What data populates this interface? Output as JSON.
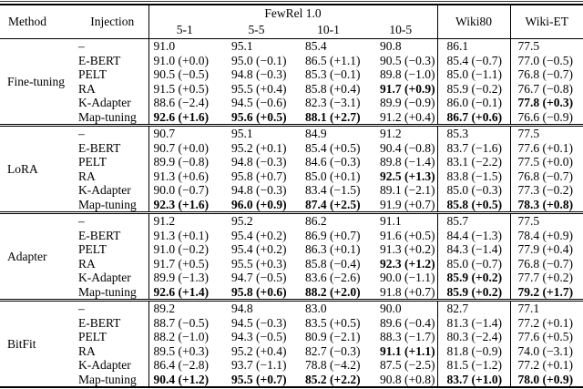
{
  "table": {
    "headers": {
      "method": "Method",
      "injection": "Injection",
      "fewrel_span": "FewRel 1.0",
      "fewrel_subcols": [
        "5-1",
        "5-5",
        "10-1",
        "10-5"
      ],
      "wiki80": "Wiki80",
      "wiki_et": "Wiki-ET"
    },
    "groups": [
      {
        "method": "Fine-tuning",
        "rows": [
          {
            "injection": "–",
            "cells": [
              "91.0",
              "95.1",
              "85.4",
              "90.8",
              "86.1",
              "77.5"
            ],
            "bold": []
          },
          {
            "injection": "E-BERT",
            "cells": [
              "91.0 (+0.0)",
              "95.0 (−0.1)",
              "86.5 (+1.1)",
              "90.5 (−0.3)",
              "85.4 (−0.7)",
              "77.0 (−0.5)"
            ],
            "bold": []
          },
          {
            "injection": "PELT",
            "cells": [
              "90.5 (−0.5)",
              "94.8 (−0.3)",
              "85.3 (−0.1)",
              "89.8 (−1.0)",
              "85.0 (−1.1)",
              "76.8 (−0.7)"
            ],
            "bold": []
          },
          {
            "injection": "RA",
            "cells": [
              "91.5 (+0.5)",
              "95.5 (+0.4)",
              "85.8 (+0.4)",
              "91.7 (+0.9)",
              "85.9 (−0.2)",
              "76.7 (−0.8)"
            ],
            "bold": [
              3
            ]
          },
          {
            "injection": "K-Adapter",
            "cells": [
              "88.6 (−2.4)",
              "94.5 (−0.6)",
              "82.3 (−3.1)",
              "89.9 (−0.9)",
              "86.0 (−0.1)",
              "77.8 (+0.3)"
            ],
            "bold": [
              5
            ]
          },
          {
            "injection": "Map-tuning",
            "cells": [
              "92.6 (+1.6)",
              "95.6 (+0.5)",
              "88.1 (+2.7)",
              "91.2 (+0.4)",
              "86.7 (+0.6)",
              "76.6 (−0.9)"
            ],
            "bold": [
              0,
              1,
              2,
              4
            ]
          }
        ]
      },
      {
        "method": "LoRA",
        "rows": [
          {
            "injection": "–",
            "cells": [
              "90.7",
              "95.1",
              "84.9",
              "91.2",
              "85.3",
              "77.5"
            ],
            "bold": []
          },
          {
            "injection": "E-BERT",
            "cells": [
              "90.7 (+0.0)",
              "95.2 (+0.1)",
              "85.4 (+0.5)",
              "90.4 (−0.8)",
              "83.7 (−1.6)",
              "77.6 (+0.1)"
            ],
            "bold": []
          },
          {
            "injection": "PELT",
            "cells": [
              "89.9 (−0.8)",
              "94.8 (−0.3)",
              "84.6 (−0.3)",
              "89.8 (−1.4)",
              "83.1 (−2.2)",
              "77.5 (+0.0)"
            ],
            "bold": []
          },
          {
            "injection": "RA",
            "cells": [
              "91.3 (+0.6)",
              "95.8 (+0.7)",
              "85.0 (+0.1)",
              "92.5 (+1.3)",
              "83.8 (−1.5)",
              "76.8 (−0.7)"
            ],
            "bold": [
              3
            ]
          },
          {
            "injection": "K-Adapter",
            "cells": [
              "90.0 (−0.7)",
              "94.8 (−0.3)",
              "83.4 (−1.5)",
              "89.1 (−2.1)",
              "85.0 (−0.3)",
              "77.3 (−0.2)"
            ],
            "bold": []
          },
          {
            "injection": "Map-tuning",
            "cells": [
              "92.3 (+1.6)",
              "96.0 (+0.9)",
              "87.4 (+2.5)",
              "91.9 (+0.7)",
              "85.8 (+0.5)",
              "78.3 (+0.8)"
            ],
            "bold": [
              0,
              1,
              2,
              4,
              5
            ]
          }
        ]
      },
      {
        "method": "Adapter",
        "rows": [
          {
            "injection": "–",
            "cells": [
              "91.2",
              "95.2",
              "86.2",
              "91.1",
              "85.7",
              "77.5"
            ],
            "bold": []
          },
          {
            "injection": "E-BERT",
            "cells": [
              "91.3 (+0.1)",
              "95.4 (+0.2)",
              "86.9 (+0.7)",
              "91.6 (+0.5)",
              "84.4 (−1.3)",
              "78.4 (+0.9)"
            ],
            "bold": []
          },
          {
            "injection": "PELT",
            "cells": [
              "91.0 (−0.2)",
              "95.4 (+0.2)",
              "86.3 (+0.1)",
              "91.3 (+0.2)",
              "84.3 (−1.4)",
              "77.9 (+0.4)"
            ],
            "bold": []
          },
          {
            "injection": "RA",
            "cells": [
              "91.7 (+0.5)",
              "95.5 (+0.3)",
              "85.8 (−0.4)",
              "92.3 (+1.2)",
              "85.0 (−0.7)",
              "76.8 (−0.7)"
            ],
            "bold": [
              3
            ]
          },
          {
            "injection": "K-Adapter",
            "cells": [
              "89.9 (−1.3)",
              "94.7 (−0.5)",
              "83.6 (−2.6)",
              "90.0 (−1.1)",
              "85.9 (+0.2)",
              "77.7 (+0.2)"
            ],
            "bold": [
              4
            ]
          },
          {
            "injection": "Map-tuning",
            "cells": [
              "92.6 (+1.4)",
              "95.8 (+0.6)",
              "88.2 (+2.0)",
              "91.8 (+0.7)",
              "85.9 (+0.2)",
              "79.2 (+1.7)"
            ],
            "bold": [
              0,
              1,
              2,
              4,
              5
            ]
          }
        ]
      },
      {
        "method": "BitFit",
        "rows": [
          {
            "injection": "–",
            "cells": [
              "89.2",
              "94.8",
              "83.0",
              "90.0",
              "82.7",
              "77.1"
            ],
            "bold": []
          },
          {
            "injection": "E-BERT",
            "cells": [
              "88.7 (−0.5)",
              "94.5 (−0.3)",
              "83.5 (+0.5)",
              "89.6 (−0.4)",
              "81.3 (−1.4)",
              "77.2 (+0.1)"
            ],
            "bold": []
          },
          {
            "injection": "PELT",
            "cells": [
              "88.2 (−1.0)",
              "94.3 (−0.5)",
              "80.9 (−2.1)",
              "88.3 (−1.7)",
              "80.3 (−2.4)",
              "77.6 (+0.5)"
            ],
            "bold": []
          },
          {
            "injection": "RA",
            "cells": [
              "89.5 (+0.3)",
              "95.2 (+0.4)",
              "82.7 (−0.3)",
              "91.1 (+1.1)",
              "81.8 (−0.9)",
              "74.0 (−3.1)"
            ],
            "bold": [
              3
            ]
          },
          {
            "injection": "K-Adapter",
            "cells": [
              "86.4 (−2.8)",
              "93.7 (−1.1)",
              "78.8 (−4.2)",
              "87.5 (−2.5)",
              "81.5 (−1.2)",
              "77.2 (+0.1)"
            ],
            "bold": []
          },
          {
            "injection": "Map-tuning",
            "cells": [
              "90.4 (+1.2)",
              "95.5 (+0.7)",
              "85.2 (+2.2)",
              "90.8 (+0.8)",
              "83.7 (+1.0)",
              "78.0 (+0.9)"
            ],
            "bold": [
              0,
              1,
              2,
              4,
              5
            ]
          }
        ]
      }
    ]
  }
}
